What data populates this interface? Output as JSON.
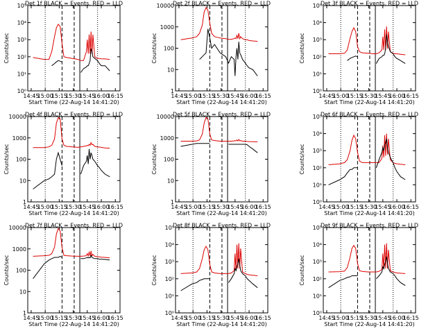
{
  "colors": {
    "events": "#000000",
    "lld": "#dd0000",
    "axes": "#000000"
  },
  "xaxis": {
    "ticks": [
      "14:45",
      "15:00",
      "15:15",
      "15:30",
      "15:45",
      "16:00",
      "16:15"
    ],
    "label": "Start Time (22-Aug-14 14:41:20)"
  },
  "ylabel": "Counts/sec",
  "chart_data": [
    {
      "type": "line",
      "title": "Det 1f BLACK = Events, RED = LLD",
      "yscale": "log",
      "ylim": [
        1,
        100000
      ],
      "yticks": [
        "10⁰",
        "10¹",
        "10²",
        "10³",
        "10⁴",
        "10⁵"
      ],
      "markers": {
        "dotted": [
          "15:00",
          "15:56"
        ],
        "dashed": [
          "15:18",
          "15:31"
        ],
        "solid": [
          "15:37"
        ]
      },
      "x": [
        "14:47",
        "14:59",
        "15:04",
        "15:07",
        "15:10",
        "15:12",
        "15:14",
        "15:16",
        "15:18",
        "15:20",
        "15:23",
        "15:29",
        "15:35",
        "15:38",
        "15:41",
        "15:44",
        "15:45",
        "15:46",
        "15:47",
        "15:48",
        "15:49",
        "15:50",
        "15:51",
        "15:53",
        "15:56",
        "15:58",
        "16:00",
        "16:04",
        "16:09"
      ],
      "series": [
        {
          "values": [
            90,
            70,
            70,
            200,
            1500,
            5000,
            8000,
            6000,
            600,
            100,
            90,
            80,
            70,
            60,
            60,
            200,
            1000,
            150,
            2000,
            150,
            3000,
            150,
            2000,
            100,
            80,
            80,
            75,
            75,
            70
          ]
        },
        {
          "values": [
            null,
            null,
            null,
            30,
            40,
            50,
            60,
            55,
            50,
            null,
            null,
            null,
            null,
            12,
            20,
            25,
            30,
            30,
            40,
            60,
            300,
            200,
            100,
            80,
            60,
            40,
            30,
            30,
            15
          ]
        }
      ]
    },
    {
      "type": "line",
      "title": "Det 2f BLACK = Events, RED = LLD",
      "yscale": "log",
      "ylim": [
        1,
        10000
      ],
      "yticks": [
        "1",
        "10",
        "100",
        "1000",
        "10000"
      ],
      "markers": {
        "dotted": [
          "15:00",
          "15:56"
        ],
        "dashed": [
          "15:18",
          "15:31"
        ],
        "solid": [
          "15:37"
        ]
      },
      "x": [
        "14:47",
        "14:59",
        "15:04",
        "15:07",
        "15:10",
        "15:12",
        "15:14",
        "15:16",
        "15:18",
        "15:20",
        "15:23",
        "15:29",
        "15:35",
        "15:38",
        "15:41",
        "15:44",
        "15:45",
        "15:46",
        "15:47",
        "15:48",
        "15:49",
        "15:50",
        "15:51",
        "15:53",
        "15:56",
        "15:58",
        "16:00",
        "16:04",
        "16:09"
      ],
      "series": [
        {
          "values": [
            250,
            300,
            350,
            500,
            1200,
            5000,
            8000,
            6000,
            1500,
            500,
            350,
            300,
            280,
            260,
            260,
            280,
            300,
            280,
            400,
            280,
            500,
            280,
            350,
            280,
            250,
            250,
            230,
            220,
            210
          ]
        },
        {
          "values": [
            null,
            null,
            null,
            30,
            40,
            50,
            60,
            800,
            300,
            100,
            150,
            60,
            40,
            20,
            40,
            30,
            5,
            40,
            100,
            30,
            200,
            60,
            50,
            30,
            20,
            15,
            12,
            10,
            5
          ]
        }
      ]
    },
    {
      "type": "line",
      "title": "Det 3f BLACK = Events, RED = LLD",
      "yscale": "log",
      "ylim": [
        1,
        100000
      ],
      "yticks": [
        "10⁰",
        "10¹",
        "10²",
        "10³",
        "10⁴",
        "10⁵"
      ],
      "markers": {
        "dotted": [
          "15:00",
          "15:56"
        ],
        "dashed": [
          "15:18",
          "15:31"
        ],
        "solid": [
          "15:37"
        ]
      },
      "x": [
        "14:47",
        "14:59",
        "15:04",
        "15:07",
        "15:10",
        "15:12",
        "15:14",
        "15:16",
        "15:18",
        "15:20",
        "15:23",
        "15:29",
        "15:35",
        "15:38",
        "15:41",
        "15:44",
        "15:45",
        "15:46",
        "15:47",
        "15:48",
        "15:49",
        "15:50",
        "15:51",
        "15:53",
        "15:56",
        "15:58",
        "16:00",
        "16:04",
        "16:09"
      ],
      "series": [
        {
          "values": [
            150,
            150,
            160,
            250,
            1200,
            3000,
            5000,
            3000,
            400,
            200,
            170,
            160,
            150,
            150,
            170,
            250,
            1500,
            250,
            4000,
            250,
            6000,
            300,
            3000,
            200,
            160,
            150,
            150,
            140,
            130
          ]
        },
        {
          "values": [
            null,
            null,
            null,
            60,
            80,
            90,
            100,
            110,
            100,
            null,
            null,
            null,
            null,
            40,
            80,
            100,
            120,
            120,
            150,
            300,
            2000,
            800,
            400,
            200,
            150,
            100,
            80,
            60,
            40
          ]
        }
      ]
    },
    {
      "type": "line",
      "title": "Det 4f BLACK = Events, RED = LLD",
      "yscale": "log",
      "ylim": [
        1,
        10000
      ],
      "yticks": [
        "1",
        "10",
        "100",
        "1000",
        "10000"
      ],
      "markers": {
        "dotted": [
          "15:00",
          "15:56"
        ],
        "dashed": [
          "15:18",
          "15:31"
        ],
        "solid": [
          "15:37"
        ]
      },
      "x": [
        "14:47",
        "14:59",
        "15:04",
        "15:07",
        "15:10",
        "15:12",
        "15:14",
        "15:16",
        "15:18",
        "15:20",
        "15:23",
        "15:29",
        "15:35",
        "15:38",
        "15:41",
        "15:44",
        "15:45",
        "15:46",
        "15:47",
        "15:48",
        "15:49",
        "15:50",
        "15:51",
        "15:53",
        "15:56",
        "15:58",
        "16:00",
        "16:04",
        "16:09"
      ],
      "series": [
        {
          "values": [
            350,
            350,
            380,
            450,
            900,
            5000,
            9000,
            8000,
            900,
            450,
            400,
            380,
            360,
            380,
            400,
            420,
            450,
            430,
            500,
            450,
            600,
            480,
            500,
            400,
            380,
            370,
            360,
            340,
            330
          ]
        },
        {
          "values": [
            4,
            10,
            12,
            15,
            20,
            100,
            200,
            100,
            50,
            null,
            null,
            null,
            null,
            20,
            50,
            80,
            150,
            60,
            300,
            100,
            200,
            150,
            100,
            80,
            50,
            40,
            30,
            20,
            15
          ]
        }
      ]
    },
    {
      "type": "line",
      "title": "Det 5f BLACK = Events, RED = LLD",
      "yscale": "log",
      "ylim": [
        1,
        10000
      ],
      "yticks": [
        "1",
        "10",
        "100",
        "1000",
        "10000"
      ],
      "markers": {
        "dotted": [
          "15:00",
          "15:56"
        ],
        "dashed": [
          "15:18",
          "15:31"
        ],
        "solid": [
          "15:37"
        ]
      },
      "x": [
        "14:47",
        "14:59",
        "15:04",
        "15:07",
        "15:10",
        "15:12",
        "15:14",
        "15:16",
        "15:18",
        "15:20",
        "15:23",
        "15:29",
        "15:35",
        "15:38",
        "15:41",
        "15:44",
        "15:45",
        "15:46",
        "15:47",
        "15:48",
        "15:49",
        "15:50",
        "15:51",
        "15:53",
        "15:56",
        "15:58",
        "16:00",
        "16:04",
        "16:09"
      ],
      "series": [
        {
          "values": [
            700,
            700,
            720,
            800,
            1500,
            5000,
            9000,
            8000,
            1500,
            800,
            750,
            700,
            700,
            700,
            700,
            720,
            750,
            720,
            800,
            720,
            850,
            720,
            750,
            700,
            700,
            680,
            670,
            660,
            650
          ]
        },
        {
          "values": [
            400,
            500,
            550,
            550,
            550,
            550,
            550,
            550,
            550,
            null,
            null,
            null,
            null,
            500,
            500,
            500,
            500,
            500,
            500,
            500,
            500,
            500,
            500,
            500,
            500,
            480,
            400,
            300,
            200
          ]
        }
      ]
    },
    {
      "type": "line",
      "title": "Det 6f BLACK = Events, RED = LLD",
      "yscale": "log",
      "ylim": [
        1,
        100000
      ],
      "yticks": [
        "10⁰",
        "10¹",
        "10²",
        "10³",
        "10⁴",
        "10⁵"
      ],
      "markers": {
        "dotted": [
          "15:00",
          "15:56"
        ],
        "dashed": [
          "15:18",
          "15:31"
        ],
        "solid": [
          "15:37"
        ]
      },
      "x": [
        "14:47",
        "14:59",
        "15:04",
        "15:07",
        "15:10",
        "15:12",
        "15:14",
        "15:16",
        "15:18",
        "15:20",
        "15:23",
        "15:29",
        "15:35",
        "15:38",
        "15:41",
        "15:44",
        "15:45",
        "15:46",
        "15:47",
        "15:48",
        "15:49",
        "15:50",
        "15:51",
        "15:53",
        "15:56",
        "15:58",
        "16:00",
        "16:04",
        "16:09"
      ],
      "series": [
        {
          "values": [
            150,
            170,
            200,
            300,
            1000,
            4000,
            8000,
            5000,
            800,
            250,
            200,
            200,
            200,
            200,
            200,
            350,
            2000,
            400,
            8000,
            500,
            10000,
            600,
            5000,
            300,
            200,
            180,
            170,
            160,
            150
          ]
        },
        {
          "values": [
            10,
            20,
            30,
            50,
            80,
            80,
            100,
            100,
            100,
            null,
            null,
            null,
            null,
            100,
            300,
            800,
            1500,
            1000,
            2000,
            3000,
            5000,
            1500,
            800,
            400,
            200,
            100,
            60,
            30,
            20
          ]
        }
      ]
    },
    {
      "type": "line",
      "title": "Det 7f BLACK = Events, RED = LLD",
      "yscale": "log",
      "ylim": [
        1,
        10000
      ],
      "yticks": [
        "1",
        "10",
        "100",
        "1000",
        "10000"
      ],
      "markers": {
        "dotted": [
          "15:00",
          "15:56"
        ],
        "dashed": [
          "15:18",
          "15:31"
        ],
        "solid": [
          "15:37"
        ]
      },
      "x": [
        "14:47",
        "14:59",
        "15:04",
        "15:07",
        "15:10",
        "15:12",
        "15:14",
        "15:16",
        "15:18",
        "15:20",
        "15:23",
        "15:29",
        "15:35",
        "15:38",
        "15:41",
        "15:44",
        "15:45",
        "15:46",
        "15:47",
        "15:48",
        "15:49",
        "15:50",
        "15:51",
        "15:53",
        "15:56",
        "15:58",
        "16:00",
        "16:04",
        "16:09"
      ],
      "series": [
        {
          "values": [
            450,
            480,
            500,
            600,
            1200,
            5000,
            9000,
            7000,
            1200,
            500,
            480,
            460,
            450,
            450,
            460,
            480,
            600,
            470,
            700,
            480,
            800,
            470,
            550,
            450,
            430,
            420,
            410,
            400,
            380
          ]
        },
        {
          "values": [
            40,
            200,
            300,
            350,
            400,
            400,
            400,
            450,
            400,
            null,
            null,
            null,
            null,
            350,
            350,
            380,
            400,
            380,
            400,
            380,
            500,
            400,
            380,
            350,
            350,
            330,
            330,
            320,
            300
          ]
        }
      ]
    },
    {
      "type": "line",
      "title": "Det 8f BLACK = Events, RED = LLD",
      "yscale": "log",
      "ylim": [
        1,
        100000
      ],
      "yticks": [
        "10⁰",
        "10¹",
        "10²",
        "10³",
        "10⁴",
        "10⁵"
      ],
      "markers": {
        "dotted": [
          "15:00",
          "15:56"
        ],
        "dashed": [
          "15:18",
          "15:31"
        ],
        "solid": [
          "15:37"
        ]
      },
      "x": [
        "14:47",
        "14:59",
        "15:04",
        "15:07",
        "15:10",
        "15:12",
        "15:14",
        "15:16",
        "15:18",
        "15:20",
        "15:23",
        "15:29",
        "15:35",
        "15:38",
        "15:41",
        "15:44",
        "15:45",
        "15:46",
        "15:47",
        "15:48",
        "15:49",
        "15:50",
        "15:51",
        "15:53",
        "15:56",
        "15:58",
        "16:00",
        "16:04",
        "16:09"
      ],
      "series": [
        {
          "values": [
            200,
            220,
            250,
            400,
            1500,
            5000,
            8000,
            5000,
            700,
            250,
            220,
            200,
            200,
            200,
            220,
            300,
            3000,
            300,
            10000,
            400,
            12000,
            400,
            6000,
            250,
            200,
            180,
            170,
            160,
            150
          ]
        },
        {
          "values": [
            20,
            50,
            60,
            80,
            90,
            100,
            100,
            100,
            100,
            null,
            null,
            null,
            null,
            60,
            100,
            200,
            400,
            300,
            500,
            800,
            1500,
            600,
            300,
            200,
            150,
            100,
            80,
            50,
            30
          ]
        }
      ]
    },
    {
      "type": "line",
      "title": "Det 9f BLACK = Events, RED = LLD",
      "yscale": "log",
      "ylim": [
        1,
        100000
      ],
      "yticks": [
        "10⁰",
        "10¹",
        "10²",
        "10³",
        "10⁴",
        "10⁵"
      ],
      "markers": {
        "dotted": [
          "15:00",
          "15:56"
        ],
        "dashed": [
          "15:18",
          "15:31"
        ],
        "solid": [
          "15:37"
        ]
      },
      "x": [
        "14:47",
        "14:59",
        "15:04",
        "15:07",
        "15:10",
        "15:12",
        "15:14",
        "15:16",
        "15:18",
        "15:20",
        "15:23",
        "15:29",
        "15:35",
        "15:38",
        "15:41",
        "15:44",
        "15:45",
        "15:46",
        "15:47",
        "15:48",
        "15:49",
        "15:50",
        "15:51",
        "15:53",
        "15:56",
        "15:58",
        "16:00",
        "16:04",
        "16:09"
      ],
      "series": [
        {
          "values": [
            250,
            260,
            280,
            450,
            1800,
            6000,
            9000,
            6000,
            800,
            300,
            270,
            250,
            250,
            250,
            270,
            350,
            3000,
            350,
            10000,
            400,
            12000,
            400,
            5000,
            300,
            250,
            230,
            220,
            210,
            200
          ]
        },
        {
          "values": [
            30,
            80,
            100,
            120,
            130,
            150,
            150,
            150,
            150,
            null,
            null,
            null,
            null,
            100,
            150,
            250,
            500,
            400,
            700,
            1000,
            2000,
            800,
            400,
            250,
            200,
            150,
            100,
            60,
            40
          ]
        }
      ]
    }
  ]
}
